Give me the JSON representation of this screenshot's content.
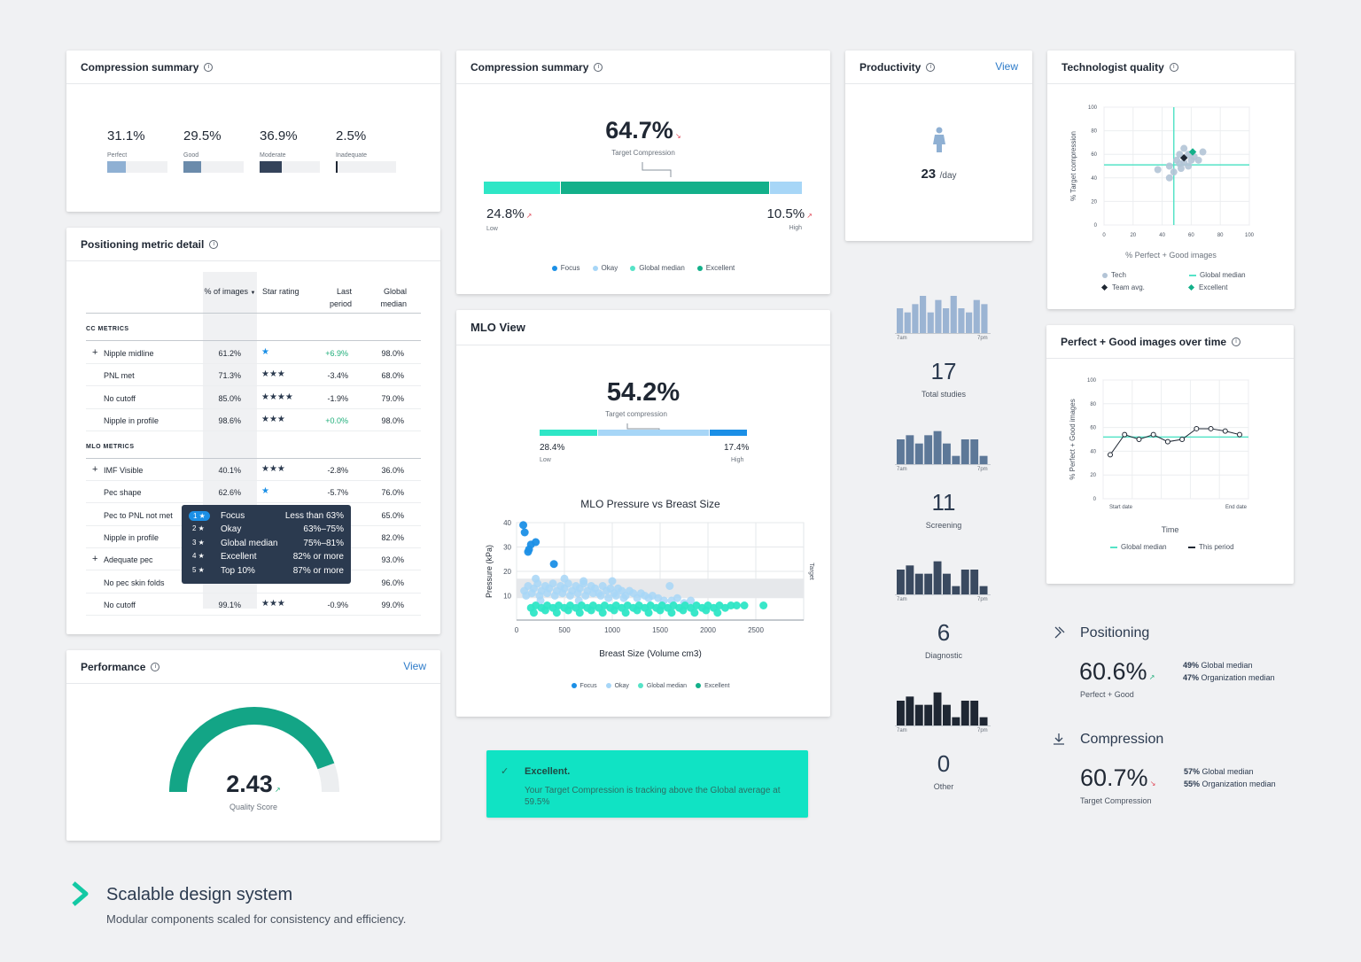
{
  "compression_summary_1": {
    "title": "Compression summary",
    "items": [
      {
        "value": "31.1%",
        "label": "Perfect",
        "fill": 0.31,
        "color": "#8fb0d3"
      },
      {
        "value": "29.5%",
        "label": "Good",
        "fill": 0.3,
        "color": "#6b8bab"
      },
      {
        "value": "36.9%",
        "label": "Moderate",
        "fill": 0.37,
        "color": "#34435a"
      },
      {
        "value": "2.5%",
        "label": "Inadequate",
        "fill": 0.025,
        "color": "#1f2733"
      }
    ]
  },
  "compression_summary_2": {
    "title": "Compression summary",
    "main_value": "64.7%",
    "main_label": "Target Compression",
    "low_value": "24.8%",
    "low_label": "Low",
    "high_value": "10.5%",
    "high_label": "High",
    "legend": [
      {
        "label": "Focus",
        "color": "#1b8fe6"
      },
      {
        "label": "Okay",
        "color": "#a7d6f7"
      },
      {
        "label": "Global median",
        "color": "#56e3c7"
      },
      {
        "label": "Excellent",
        "color": "#13b08a"
      }
    ]
  },
  "productivity": {
    "title": "Productivity",
    "view": "View",
    "value": "23",
    "unit": "/day"
  },
  "technologist_quality": {
    "title": "Technologist quality",
    "ylabel": "% Target compression",
    "xlabel": "% Perfect + Good images",
    "ticks": [
      "0",
      "20",
      "40",
      "60",
      "80",
      "100"
    ],
    "legend": [
      {
        "label": "Tech"
      },
      {
        "label": "Global median"
      },
      {
        "label": "Team avg."
      },
      {
        "label": "Excellent"
      }
    ]
  },
  "positioning_detail": {
    "title": "Positioning metric detail",
    "headers": {
      "pct": "% of images",
      "star": "Star rating",
      "last": "Last period",
      "global": "Global median"
    },
    "cc_label": "CC METRICS",
    "mlo_label": "MLO METRICS",
    "cc_rows": [
      {
        "name": "Nipple midline",
        "expand": "+",
        "pct": "61.2%",
        "stars": "★",
        "change": "+6.9%",
        "global": "98.0%"
      },
      {
        "name": "PNL met",
        "expand": "",
        "pct": "71.3%",
        "stars": "★★★",
        "change": "-3.4%",
        "global": "68.0%"
      },
      {
        "name": "No cutoff",
        "expand": "",
        "pct": "85.0%",
        "stars": "★★★★",
        "change": "-1.9%",
        "global": "79.0%"
      },
      {
        "name": "Nipple in profile",
        "expand": "",
        "pct": "98.6%",
        "stars": "★★★",
        "change": "+0.0%",
        "global": "98.0%"
      }
    ],
    "mlo_rows": [
      {
        "name": "IMF Visible",
        "expand": "+",
        "pct": "40.1%",
        "stars": "★★★",
        "change": "-2.8%",
        "global": "36.0%"
      },
      {
        "name": "Pec shape",
        "expand": "",
        "pct": "62.6%",
        "stars": "★",
        "change": "-5.7%",
        "global": "76.0%"
      },
      {
        "name": "Pec to PNL not met",
        "expand": "",
        "pct": "",
        "stars": "",
        "change": "",
        "global": "65.0%"
      },
      {
        "name": "Nipple in profile",
        "expand": "",
        "pct": "",
        "stars": "",
        "change": "",
        "global": "82.0%"
      },
      {
        "name": "Adequate pec",
        "expand": "+",
        "pct": "",
        "stars": "",
        "change": "",
        "global": "93.0%"
      },
      {
        "name": "No pec skin folds",
        "expand": "",
        "pct": "",
        "stars": "",
        "change": "",
        "global": "96.0%"
      },
      {
        "name": "No cutoff",
        "expand": "",
        "pct": "99.1%",
        "stars": "★★★",
        "change": "-0.9%",
        "global": "99.0%"
      }
    ],
    "tooltip": [
      {
        "num": "1 ★",
        "name": "Focus",
        "range": "Less than 63%"
      },
      {
        "num": "2 ★",
        "name": "Okay",
        "range": "63%–75%"
      },
      {
        "num": "3 ★",
        "name": "Global median",
        "range": "75%–81%"
      },
      {
        "num": "4 ★",
        "name": "Excellent",
        "range": "82% or more"
      },
      {
        "num": "5 ★",
        "name": "Top 10%",
        "range": "87% or more"
      }
    ]
  },
  "mlo_view": {
    "title": "MLO View",
    "main_value": "54.2%",
    "main_label": "Target compression",
    "low_value": "28.4%",
    "low_label": "Low",
    "high_value": "17.4%",
    "high_label": "High",
    "legend": [
      {
        "label": "Focus",
        "color": "#1b8fe6"
      },
      {
        "label": "Okay",
        "color": "#a7d6f7"
      },
      {
        "label": "Global median",
        "color": "#56e3c7"
      },
      {
        "label": "Excellent",
        "color": "#13b08a"
      }
    ]
  },
  "chart_data": {
    "type": "scatter",
    "title": "MLO Pressure vs Breast Size",
    "xlabel": "Breast Size (Volume cm3)",
    "ylabel": "Pressure (kPa)",
    "right_label": "Target",
    "xlim": [
      0,
      3000
    ],
    "ylim": [
      0,
      40
    ],
    "xticks": [
      "0",
      "500",
      "1000",
      "1500",
      "2000",
      "2500"
    ],
    "yticks": [
      "10",
      "20",
      "30",
      "40"
    ],
    "target_band": [
      9,
      17
    ],
    "series": [
      {
        "name": "Focus",
        "points": [
          [
            70,
            39
          ],
          [
            85,
            36
          ],
          [
            150,
            31
          ],
          [
            130,
            29
          ],
          [
            200,
            32
          ],
          [
            120,
            28
          ],
          [
            390,
            23
          ]
        ]
      },
      {
        "name": "Okay",
        "points": [
          [
            80,
            12
          ],
          [
            120,
            14
          ],
          [
            180,
            13
          ],
          [
            220,
            15
          ],
          [
            260,
            12
          ],
          [
            300,
            14
          ],
          [
            340,
            13
          ],
          [
            380,
            15
          ],
          [
            420,
            12
          ],
          [
            460,
            14
          ],
          [
            500,
            13
          ],
          [
            540,
            15
          ],
          [
            580,
            12
          ],
          [
            620,
            14
          ],
          [
            660,
            13
          ],
          [
            700,
            15
          ],
          [
            740,
            12
          ],
          [
            780,
            14
          ],
          [
            820,
            13
          ],
          [
            860,
            11
          ],
          [
            900,
            14
          ],
          [
            940,
            12
          ],
          [
            980,
            13
          ],
          [
            1020,
            11
          ],
          [
            1060,
            13
          ],
          [
            1100,
            12
          ],
          [
            1140,
            10
          ],
          [
            1180,
            12
          ],
          [
            1220,
            11
          ],
          [
            1260,
            9
          ],
          [
            1300,
            11
          ],
          [
            1340,
            10
          ],
          [
            1380,
            9
          ],
          [
            1420,
            10
          ],
          [
            1480,
            9
          ],
          [
            1540,
            8
          ],
          [
            1620,
            8
          ],
          [
            1680,
            9
          ],
          [
            1750,
            7
          ],
          [
            1820,
            8
          ],
          [
            100,
            10
          ],
          [
            160,
            11
          ],
          [
            240,
            10
          ],
          [
            320,
            11
          ],
          [
            400,
            10
          ],
          [
            480,
            11
          ],
          [
            560,
            10
          ],
          [
            640,
            11
          ],
          [
            720,
            10
          ],
          [
            800,
            11
          ],
          [
            880,
            10
          ],
          [
            960,
            9
          ],
          [
            1040,
            10
          ],
          [
            1120,
            9
          ],
          [
            1600,
            14
          ],
          [
            200,
            17
          ],
          [
            500,
            17
          ],
          [
            700,
            16
          ],
          [
            1000,
            16
          ],
          [
            250,
            8
          ],
          [
            650,
            8
          ]
        ]
      },
      {
        "name": "Excellent",
        "points": [
          [
            150,
            5
          ],
          [
            200,
            6
          ],
          [
            260,
            5
          ],
          [
            320,
            6
          ],
          [
            380,
            5
          ],
          [
            440,
            6
          ],
          [
            500,
            5
          ],
          [
            560,
            6
          ],
          [
            620,
            5
          ],
          [
            680,
            6
          ],
          [
            740,
            5
          ],
          [
            800,
            6
          ],
          [
            860,
            5
          ],
          [
            920,
            6
          ],
          [
            980,
            5
          ],
          [
            1040,
            6
          ],
          [
            1100,
            5
          ],
          [
            1160,
            6
          ],
          [
            1220,
            5
          ],
          [
            1280,
            6
          ],
          [
            1340,
            5
          ],
          [
            1400,
            6
          ],
          [
            1460,
            5
          ],
          [
            1520,
            6
          ],
          [
            1580,
            5
          ],
          [
            1640,
            6
          ],
          [
            1700,
            5
          ],
          [
            1760,
            6
          ],
          [
            1820,
            5
          ],
          [
            1880,
            6
          ],
          [
            1940,
            5
          ],
          [
            2000,
            6
          ],
          [
            2060,
            5
          ],
          [
            2120,
            6
          ],
          [
            2180,
            5
          ],
          [
            2240,
            6
          ],
          [
            2300,
            6
          ],
          [
            2380,
            6
          ],
          [
            180,
            3
          ],
          [
            300,
            4
          ],
          [
            420,
            3
          ],
          [
            540,
            4
          ],
          [
            660,
            3
          ],
          [
            780,
            4
          ],
          [
            900,
            3
          ],
          [
            1020,
            4
          ],
          [
            1140,
            3
          ],
          [
            1260,
            4
          ],
          [
            1380,
            3
          ],
          [
            1500,
            4
          ],
          [
            1620,
            3
          ],
          [
            1740,
            4
          ],
          [
            1860,
            3
          ],
          [
            1980,
            4
          ],
          [
            2100,
            3
          ]
        ]
      },
      {
        "name": "Global median",
        "points": [
          [
            2580,
            6
          ]
        ]
      }
    ]
  },
  "studies": [
    {
      "value": "17",
      "label": "Total studies",
      "bars": [
        6,
        5,
        7,
        9,
        5,
        8,
        6,
        9,
        6,
        5,
        8,
        7
      ],
      "color": "#9bb4d3",
      "start": "7am",
      "end": "7pm"
    },
    {
      "value": "11",
      "label": "Screening",
      "bars": [
        6,
        7,
        5,
        7,
        8,
        5,
        2,
        6,
        6,
        2
      ],
      "color": "#5d7898",
      "start": "7am",
      "end": "7pm"
    },
    {
      "value": "6",
      "label": "Diagnostic",
      "bars": [
        6,
        7,
        5,
        5,
        8,
        5,
        2,
        6,
        6,
        2
      ],
      "color": "#3a4a60",
      "start": "7am",
      "end": "7pm"
    },
    {
      "value": "0",
      "label": "Other",
      "bars": [
        6,
        7,
        5,
        5,
        8,
        5,
        2,
        6,
        6,
        2
      ],
      "color": "#1f2733",
      "start": "7am",
      "end": "7pm"
    }
  ],
  "perfect_good": {
    "title": "Perfect + Good images over time",
    "ylabel": "% Perfect + Good images",
    "xlabel": "Time",
    "start": "Start date",
    "end": "End date",
    "yticks": [
      "0",
      "20",
      "40",
      "60",
      "80",
      "100"
    ],
    "values": [
      37,
      54,
      50,
      54,
      48,
      50,
      59,
      59,
      57,
      54
    ],
    "global_median": 52,
    "legend": [
      {
        "label": "Global median"
      },
      {
        "label": "This period"
      }
    ]
  },
  "performance": {
    "title": "Performance",
    "view": "View",
    "value": "2.43",
    "label": "Quality Score",
    "fill": 0.89
  },
  "alert": {
    "title": "Excellent.",
    "text": "Your Target Compression is tracking above the Global average at 59.5%"
  },
  "positioning_kpi": {
    "title": "Positioning",
    "value": "60.6%",
    "label": "Perfect + Good",
    "stats": [
      {
        "pct": "49%",
        "label": "Global median"
      },
      {
        "pct": "47%",
        "label": "Organization median"
      }
    ]
  },
  "compression_kpi": {
    "title": "Compression",
    "value": "60.7%",
    "label": "Target Compression",
    "stats": [
      {
        "pct": "57%",
        "label": "Global median"
      },
      {
        "pct": "55%",
        "label": "Organization median"
      }
    ]
  },
  "footer": {
    "title": "Scalable design system",
    "subtitle": "Modular components scaled for consistency and efficiency."
  }
}
